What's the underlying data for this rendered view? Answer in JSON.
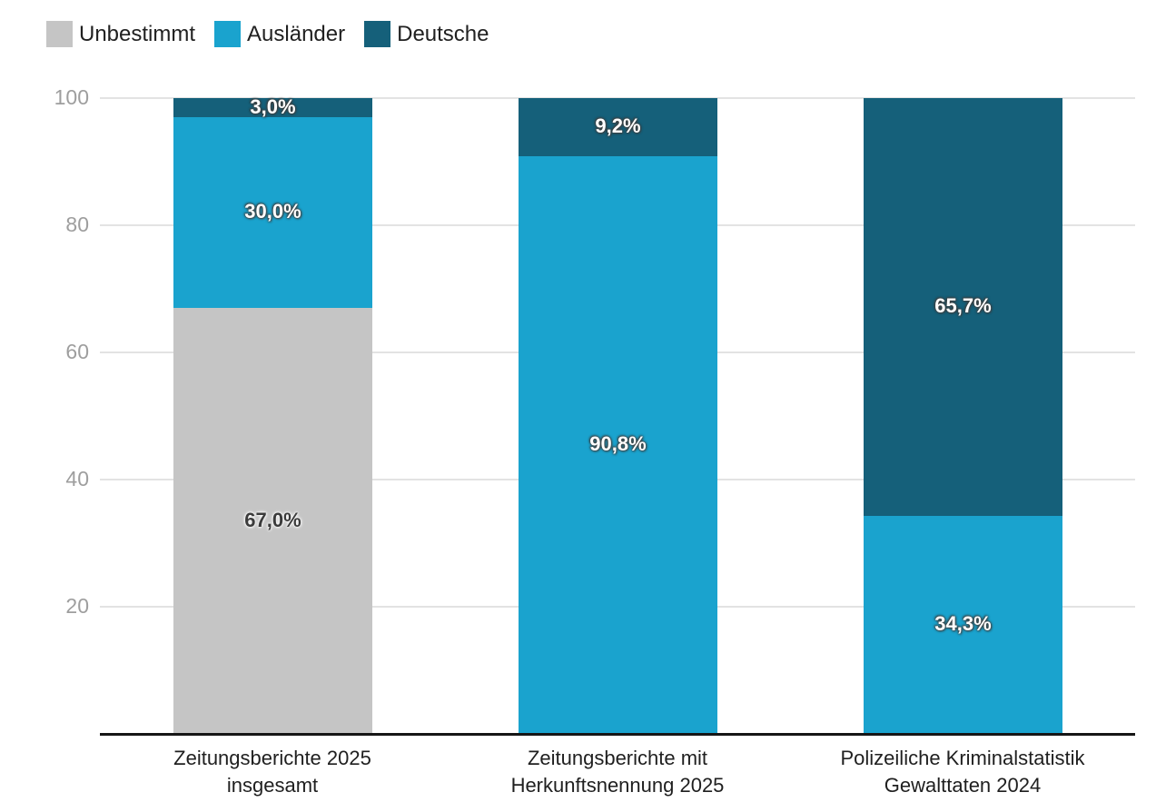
{
  "legend": {
    "items": [
      {
        "label": "Unbestimmt",
        "color": "#c5c5c5"
      },
      {
        "label": "Ausländer",
        "color": "#1aa3ce"
      },
      {
        "label": "Deutsche",
        "color": "#15607a"
      }
    ]
  },
  "chart_data": {
    "type": "bar",
    "stacked": true,
    "orientation": "vertical",
    "title": "",
    "xlabel": "",
    "ylabel": "",
    "grid": true,
    "legend_position": "top-left",
    "y_axis": {
      "min": 0,
      "max": 100,
      "tick_values": [
        20,
        40,
        60,
        80,
        100
      ],
      "tick_labels": [
        "20",
        "40",
        "60",
        "80",
        "100"
      ]
    },
    "categories": [
      [
        "Zeitungsberichte 2025",
        "insgesamt"
      ],
      [
        "Zeitungsberichte mit",
        "Herkunftsnennung 2025"
      ],
      [
        "Polizeiliche Kriminalstatistik",
        "Gewalttaten 2024"
      ]
    ],
    "series": [
      {
        "name": "Unbestimmt",
        "color": "#c5c5c5",
        "values": [
          67.0,
          0,
          0
        ],
        "labels": [
          "67,0%",
          "",
          ""
        ],
        "label_style": "dark"
      },
      {
        "name": "Ausländer",
        "color": "#1aa3ce",
        "values": [
          30.0,
          90.8,
          34.3
        ],
        "labels": [
          "30,0%",
          "90,8%",
          "34,3%"
        ],
        "label_style": "light"
      },
      {
        "name": "Deutsche",
        "color": "#15607a",
        "values": [
          3.0,
          9.2,
          65.7
        ],
        "labels": [
          "3,0%",
          "9,2%",
          "65,7%"
        ],
        "label_style": "light"
      }
    ]
  }
}
